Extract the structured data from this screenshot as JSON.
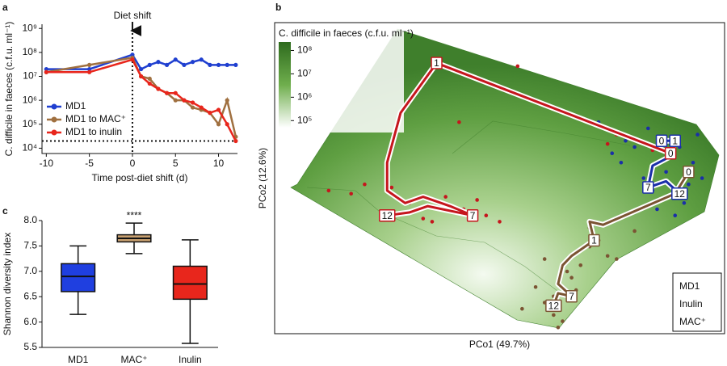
{
  "chart_data": [
    {
      "type": "line",
      "panel": "a",
      "log_y": true,
      "annotation": "Diet shift",
      "shift_x": 0,
      "detection_limit": 20000,
      "xlabel": "Time post-diet shift (d)",
      "ylabel": "C. difficile in faeces (c.f.u. ml⁻¹)",
      "xlim": [
        -10.5,
        12.2
      ],
      "xticks": [
        -10,
        -5,
        0,
        5,
        10
      ],
      "ylim": [
        6000,
        1500000000
      ],
      "yticks": [
        {
          "value": 10000,
          "label": "10⁴"
        },
        {
          "value": 100000,
          "label": "10⁵"
        },
        {
          "value": 1000000,
          "label": "10⁶"
        },
        {
          "value": 10000000,
          "label": "10⁷"
        },
        {
          "value": 100000000,
          "label": "10⁸"
        },
        {
          "value": 1000000000,
          "label": "10⁹"
        }
      ],
      "x": [
        -10,
        -5,
        0,
        1,
        2,
        3,
        4,
        5,
        6,
        7,
        8,
        9,
        10,
        11,
        12
      ],
      "series": [
        {
          "name": "MD1",
          "color": "#1f3fd0",
          "values": [
            20000000,
            20000000,
            80000000,
            20000000,
            30000000,
            40000000,
            30000000,
            50000000,
            30000000,
            40000000,
            50000000,
            30000000,
            30000000,
            30000000,
            30000000
          ]
        },
        {
          "name": "MD1 to MAC⁺",
          "color": "#a07040",
          "values": [
            15000000,
            30000000,
            60000000,
            10000000,
            8000000,
            3000000,
            2000000,
            1000000,
            1000000,
            500000,
            400000,
            300000,
            100000,
            1000000,
            30000
          ]
        },
        {
          "name": "MD1 to inulin",
          "color": "#e8261c",
          "values": [
            15000000,
            15000000,
            50000000,
            10000000,
            5000000,
            3000000,
            2000000,
            2000000,
            1000000,
            800000,
            500000,
            300000,
            400000,
            100000,
            20000
          ]
        }
      ]
    },
    {
      "type": "scatter",
      "panel": "b",
      "xlabel": "PCo1 (49.7%)",
      "ylabel": "PCo2 (12.6%)",
      "xlim": [
        0,
        100
      ],
      "ylim": [
        0,
        100
      ],
      "colorbar": {
        "label": "C. difficile in faeces (c.f.u. ml⁻¹)",
        "lim": [
          50000,
          230000000
        ],
        "ticks": [
          {
            "value": 100000,
            "label": "10⁵"
          },
          {
            "value": 1000000,
            "label": "10⁶"
          },
          {
            "value": 10000000,
            "label": "10⁷"
          },
          {
            "value": 100000000,
            "label": "10⁸"
          }
        ]
      },
      "series": [
        {
          "name": "MD1",
          "color": "#1a2fa8",
          "x": [
            72,
            75,
            77,
            80,
            82,
            84,
            86,
            87,
            88,
            90,
            91,
            92,
            93,
            94,
            95,
            89,
            85,
            78,
            83,
            90
          ],
          "y": [
            68,
            58,
            55,
            60,
            50,
            46,
            63,
            52,
            57,
            60,
            42,
            48,
            55,
            64,
            50,
            38,
            40,
            62,
            66,
            44
          ],
          "trajectory_x": [
            86,
            89,
            88,
            84,
            83,
            87,
            90
          ],
          "trajectory_y": [
            62,
            62,
            57,
            54,
            47,
            49,
            45
          ],
          "trajectory_labels": [
            "0",
            "1",
            null,
            null,
            "7",
            null,
            "12"
          ]
        },
        {
          "name": "Inulin",
          "color": "#c5161d",
          "x": [
            33,
            30,
            41,
            47,
            54,
            12,
            17,
            26,
            33,
            38,
            45,
            47,
            50,
            74,
            76,
            84,
            20,
            35,
            42,
            30
          ],
          "y": [
            82,
            75,
            68,
            81,
            86,
            46,
            45,
            47,
            37,
            44,
            43,
            38,
            36,
            61,
            64,
            59,
            48,
            36,
            40,
            42
          ],
          "trajectory_x": [
            88,
            36,
            28,
            25,
            25,
            29,
            33,
            39,
            44,
            34,
            30,
            25
          ],
          "trajectory_y": [
            58,
            87,
            71,
            55,
            46,
            42,
            44,
            41,
            38,
            41,
            39,
            38
          ],
          "trajectory_labels": [
            "0",
            "1",
            null,
            null,
            null,
            null,
            null,
            null,
            "7",
            null,
            null,
            "12"
          ]
        },
        {
          "name": "MAC⁺",
          "color": "#7b5433",
          "x": [
            55,
            60,
            62,
            65,
            68,
            70,
            72,
            74,
            62,
            64,
            58,
            66,
            70,
            76,
            80,
            63,
            60,
            67
          ],
          "y": [
            8,
            10,
            12,
            20,
            22,
            28,
            30,
            25,
            6,
            4,
            15,
            18,
            34,
            24,
            33,
            2,
            24,
            14
          ],
          "trajectory_x": [
            92,
            89,
            81,
            73,
            70,
            71,
            66,
            64,
            63,
            66,
            63,
            62
          ],
          "trajectory_y": [
            52,
            45,
            40,
            35,
            36,
            30,
            25,
            22,
            16,
            12,
            13,
            9
          ],
          "trajectory_labels": [
            "0",
            null,
            null,
            null,
            null,
            "1",
            null,
            null,
            null,
            "7",
            null,
            "12"
          ]
        }
      ]
    },
    {
      "type": "box",
      "panel": "c",
      "ylabel": "Shannon diversity index",
      "categories": [
        "MD1",
        "MAC⁺",
        "Inulin"
      ],
      "colors": [
        "#1f3fe0",
        "#c8a070",
        "#e8261c"
      ],
      "significance": [
        null,
        "****",
        null
      ],
      "ylim": [
        5.5,
        8.0
      ],
      "yticks": [
        5.5,
        {
          "value": 6,
          "label": "6.0"
        },
        6.5,
        {
          "value": 7,
          "label": "7.0"
        },
        7.5,
        {
          "value": 8,
          "label": "8.0"
        }
      ],
      "min": [
        6.15,
        7.35,
        5.58
      ],
      "q1": [
        6.6,
        7.58,
        6.45
      ],
      "median": [
        6.9,
        7.65,
        6.75
      ],
      "q3": [
        7.15,
        7.72,
        7.1
      ],
      "max": [
        7.5,
        7.95,
        7.62
      ]
    }
  ]
}
